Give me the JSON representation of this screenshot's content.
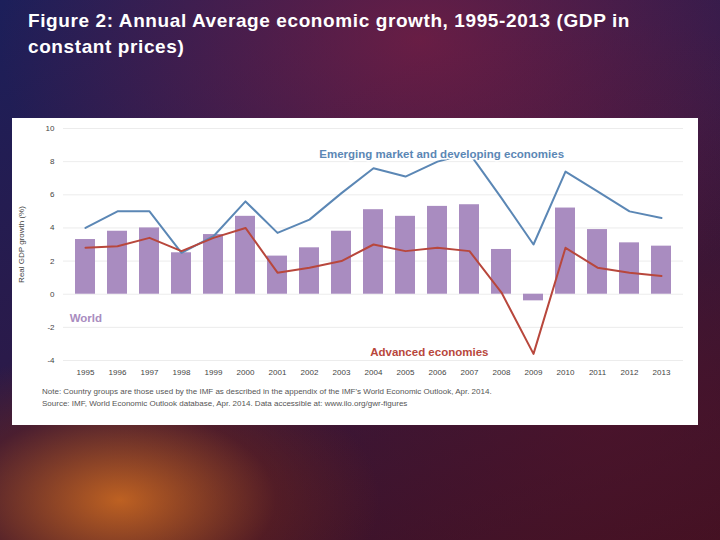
{
  "chart_data": {
    "type": "bar",
    "title": "Figure 2: Annual Average economic growth, 1995-2013 (GDP in constant prices)",
    "y_label": "Real GDP growth (%)",
    "categories": [
      "1995",
      "1996",
      "1997",
      "1998",
      "1999",
      "2000",
      "2001",
      "2002",
      "2003",
      "2004",
      "2005",
      "2006",
      "2007",
      "2008",
      "2009",
      "2010",
      "2011",
      "2012",
      "2013"
    ],
    "series": [
      {
        "name": "Emerging market and developing economies",
        "type": "line",
        "color": "#5b87b5",
        "values": [
          4.0,
          5.0,
          5.0,
          2.5,
          3.5,
          5.6,
          3.7,
          4.5,
          6.1,
          7.6,
          7.1,
          8.0,
          8.5,
          5.8,
          3.0,
          7.4,
          6.2,
          5.0,
          4.6
        ]
      },
      {
        "name": "World",
        "type": "bar",
        "color": "#a98cc0",
        "values": [
          3.3,
          3.8,
          4.0,
          2.5,
          3.6,
          4.7,
          2.3,
          2.8,
          3.8,
          5.1,
          4.7,
          5.3,
          5.4,
          2.7,
          -0.4,
          5.2,
          3.9,
          3.1,
          2.9
        ]
      },
      {
        "name": "Advanced economies",
        "type": "line",
        "color": "#b8473c",
        "values": [
          2.8,
          2.9,
          3.4,
          2.6,
          3.4,
          4.0,
          1.3,
          1.6,
          2.0,
          3.0,
          2.6,
          2.8,
          2.6,
          0.1,
          -3.6,
          2.8,
          1.6,
          1.3,
          1.1
        ]
      }
    ],
    "ylim": [
      -4,
      10
    ],
    "yticks": [
      -4,
      -2,
      0,
      2,
      4,
      6,
      8,
      10
    ],
    "grid": true,
    "note": "Note: Country groups are those used by the IMF as described in the appendix of the IMF's World Economic Outlook, Apr. 2014.",
    "source": "Source: IMF, World Economic Outlook database, Apr. 2014. Data accessible at: www.ilo.org/gwr-figures"
  }
}
